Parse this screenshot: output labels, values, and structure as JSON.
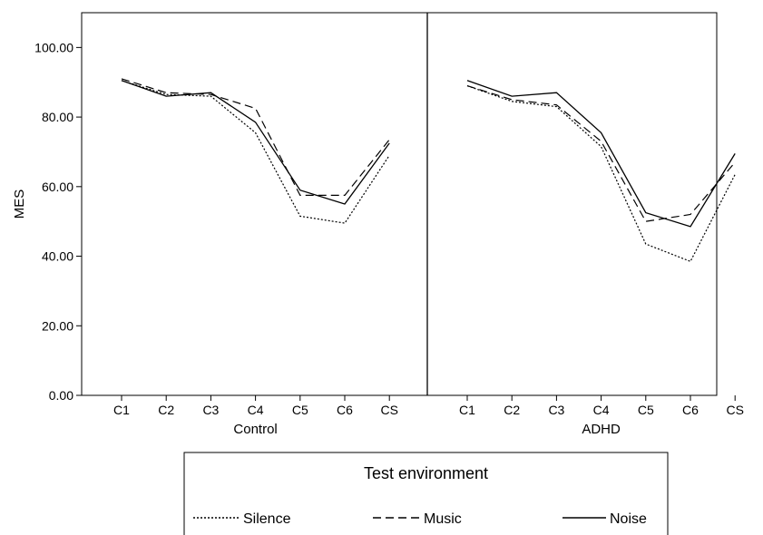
{
  "chart_data": {
    "type": "line",
    "ylabel": "MES",
    "ylim": [
      0,
      110
    ],
    "yticks": [
      0,
      20,
      40,
      60,
      80,
      100
    ],
    "ytick_labels": [
      "0.00",
      "20.00",
      "40.00",
      "60.00",
      "80.00",
      "100.00"
    ],
    "categories": [
      "C1",
      "C2",
      "C3",
      "C4",
      "C5",
      "C6",
      "CS"
    ],
    "grid": false,
    "legend_position": "bottom",
    "panels": [
      {
        "label": "Control",
        "series": [
          {
            "name": "Silence",
            "values": [
              90.5,
              86.5,
              86.0,
              75.5,
              51.5,
              49.5,
              69.0
            ]
          },
          {
            "name": "Music",
            "values": [
              91.0,
              87.0,
              86.5,
              82.5,
              57.5,
              57.5,
              73.5
            ]
          },
          {
            "name": "Noise",
            "values": [
              90.5,
              86.0,
              87.0,
              78.5,
              59.0,
              55.0,
              72.5
            ]
          }
        ]
      },
      {
        "label": "ADHD",
        "series": [
          {
            "name": "Silence",
            "values": [
              89.0,
              84.5,
              83.0,
              71.5,
              43.5,
              38.5,
              63.5
            ]
          },
          {
            "name": "Music",
            "values": [
              89.0,
              85.0,
              83.5,
              73.0,
              50.0,
              52.0,
              67.0
            ]
          },
          {
            "name": "Noise",
            "values": [
              90.5,
              86.0,
              87.0,
              75.5,
              52.5,
              48.5,
              69.5
            ]
          }
        ]
      }
    ],
    "legend": {
      "title": "Test environment",
      "entries": [
        {
          "name": "Silence",
          "style": "dotted"
        },
        {
          "name": "Music",
          "style": "dashed"
        },
        {
          "name": "Noise",
          "style": "solid"
        }
      ]
    },
    "colors": {
      "line": "#000000",
      "axis": "#000000",
      "background": "#ffffff"
    }
  }
}
